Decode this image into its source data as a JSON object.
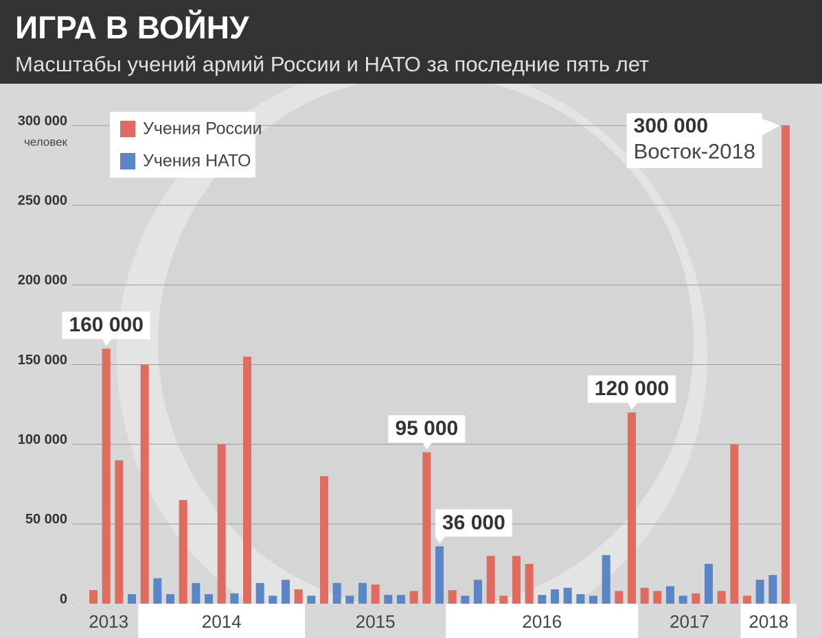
{
  "header": {
    "title": "ИГРА В ВОЙНУ",
    "subtitle": "Масштабы учений армий России и НАТО за последние пять лет"
  },
  "chart_data": {
    "type": "bar",
    "y_unit": "человек",
    "annotation": "Восток-2018",
    "categories": [
      "2013",
      "2013",
      "2013",
      "2013",
      "2014",
      "2014",
      "2014",
      "2014",
      "2014",
      "2014",
      "2014",
      "2014",
      "2014",
      "2014",
      "2014",
      "2014",
      "2014",
      "2015",
      "2015",
      "2015",
      "2015",
      "2015",
      "2015",
      "2015",
      "2015",
      "2015",
      "2015",
      "2015",
      "2016",
      "2016",
      "2016",
      "2016",
      "2016",
      "2016",
      "2016",
      "2016",
      "2016",
      "2016",
      "2016",
      "2016",
      "2016",
      "2016",
      "2016",
      "2017",
      "2017",
      "2017",
      "2017",
      "2017",
      "2017",
      "2017",
      "2017",
      "2018",
      "2018",
      "2018",
      "2018"
    ],
    "series": [
      {
        "name": "Учения России",
        "color": "#e06c5f",
        "values": [
          8500,
          160000,
          90000,
          null,
          150000,
          null,
          null,
          65000,
          null,
          null,
          100000,
          null,
          155000,
          null,
          null,
          null,
          9000,
          null,
          80000,
          null,
          null,
          null,
          12000,
          null,
          null,
          8000,
          95000,
          null,
          8500,
          null,
          null,
          30000,
          5000,
          30000,
          25000,
          null,
          null,
          null,
          null,
          null,
          null,
          8000,
          120000,
          10000,
          8000,
          null,
          null,
          6500,
          null,
          8000,
          100000,
          5000,
          null,
          null,
          300000
        ],
        "value_labels": [
          null,
          "160 000",
          null,
          null,
          null,
          null,
          null,
          null,
          null,
          null,
          null,
          null,
          null,
          null,
          null,
          null,
          null,
          null,
          null,
          null,
          null,
          null,
          null,
          null,
          null,
          null,
          "95 000",
          null,
          null,
          null,
          null,
          null,
          null,
          null,
          null,
          null,
          null,
          null,
          null,
          null,
          null,
          null,
          "120 000",
          null,
          null,
          null,
          null,
          null,
          null,
          null,
          null,
          null,
          null,
          null,
          "300 000"
        ]
      },
      {
        "name": "Учения НАТО",
        "color": "#5a86c8",
        "values": [
          null,
          null,
          null,
          6000,
          null,
          16000,
          6000,
          null,
          13000,
          6000,
          null,
          6500,
          null,
          13000,
          5000,
          15000,
          null,
          5000,
          null,
          13000,
          5000,
          13000,
          null,
          5500,
          5500,
          null,
          null,
          36000,
          null,
          5000,
          15000,
          null,
          null,
          null,
          null,
          5500,
          9000,
          10000,
          6000,
          5000,
          30500,
          null,
          null,
          null,
          null,
          11000,
          5000,
          null,
          25000,
          null,
          null,
          null,
          15000,
          18000,
          null
        ],
        "value_labels": [
          null,
          null,
          null,
          null,
          null,
          null,
          null,
          null,
          null,
          null,
          null,
          null,
          null,
          null,
          null,
          null,
          null,
          null,
          null,
          null,
          null,
          null,
          null,
          null,
          null,
          null,
          null,
          "36 000",
          null,
          null,
          null,
          null,
          null,
          null,
          null,
          null,
          null,
          null,
          null,
          null,
          null,
          null,
          null,
          null,
          null,
          null,
          null,
          null,
          null,
          null,
          null,
          null,
          null,
          null,
          null
        ]
      }
    ],
    "ylim": [
      0,
      300000
    ],
    "yticks": [
      0,
      {
        "value": 50000,
        "label": "50 000"
      },
      {
        "value": 100000,
        "label": "100 000"
      },
      {
        "value": 150000,
        "label": "150 000"
      },
      {
        "value": 200000,
        "label": "200 000"
      },
      {
        "value": 250000,
        "label": "250 000"
      },
      {
        "value": 300000,
        "label": "300 000"
      }
    ],
    "grid": true
  }
}
